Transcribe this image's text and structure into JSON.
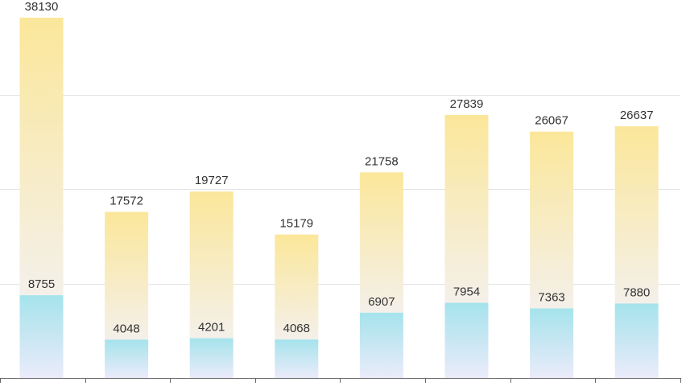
{
  "chart_data": {
    "type": "bar",
    "categories": [
      "",
      "",
      "",
      "",
      "",
      "",
      "",
      ""
    ],
    "series": [
      {
        "values": [
          38130,
          17572,
          19727,
          15179,
          21758,
          27839,
          26067,
          26637
        ]
      },
      {
        "values": [
          8755,
          4048,
          4201,
          4068,
          6907,
          7954,
          7363,
          7880
        ]
      }
    ],
    "ylim": [
      0,
      40000
    ],
    "grid": true,
    "gridlines_at": [
      10000,
      20000,
      30000
    ],
    "colors": {
      "total_top": "#fbe79a",
      "total_bottom": "#f4f0ea",
      "sub_top": "#a5e3ec",
      "sub_bottom": "#ebebfa",
      "grid": "#e3e3e3",
      "axis": "#666666",
      "label": "#333333"
    }
  }
}
